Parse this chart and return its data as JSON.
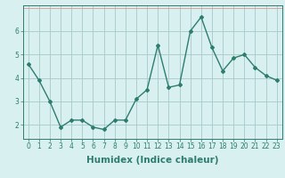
{
  "x": [
    0,
    1,
    2,
    3,
    4,
    5,
    6,
    7,
    8,
    9,
    10,
    11,
    12,
    13,
    14,
    15,
    16,
    17,
    18,
    19,
    20,
    21,
    22,
    23
  ],
  "y": [
    4.6,
    3.9,
    3.0,
    1.9,
    2.2,
    2.2,
    1.9,
    1.8,
    2.2,
    2.2,
    3.1,
    3.5,
    5.4,
    3.6,
    3.7,
    6.0,
    6.6,
    5.3,
    4.3,
    4.85,
    5.0,
    4.45,
    4.1,
    3.9
  ],
  "xlabel": "Humidex (Indice chaleur)",
  "ylabel": "",
  "line_color": "#2e7d6e",
  "marker": "D",
  "marker_size": 2,
  "bg_color": "#d8f0f0",
  "grid_color_major": "#a8c8c8",
  "grid_color_minor": "#e89090",
  "xlim": [
    -0.5,
    23.5
  ],
  "ylim": [
    1.4,
    7.1
  ],
  "yticks": [
    2,
    3,
    4,
    5,
    6
  ],
  "xticks": [
    0,
    1,
    2,
    3,
    4,
    5,
    6,
    7,
    8,
    9,
    10,
    11,
    12,
    13,
    14,
    15,
    16,
    17,
    18,
    19,
    20,
    21,
    22,
    23
  ],
  "tick_label_fontsize": 5.5,
  "xlabel_fontsize": 7.5
}
